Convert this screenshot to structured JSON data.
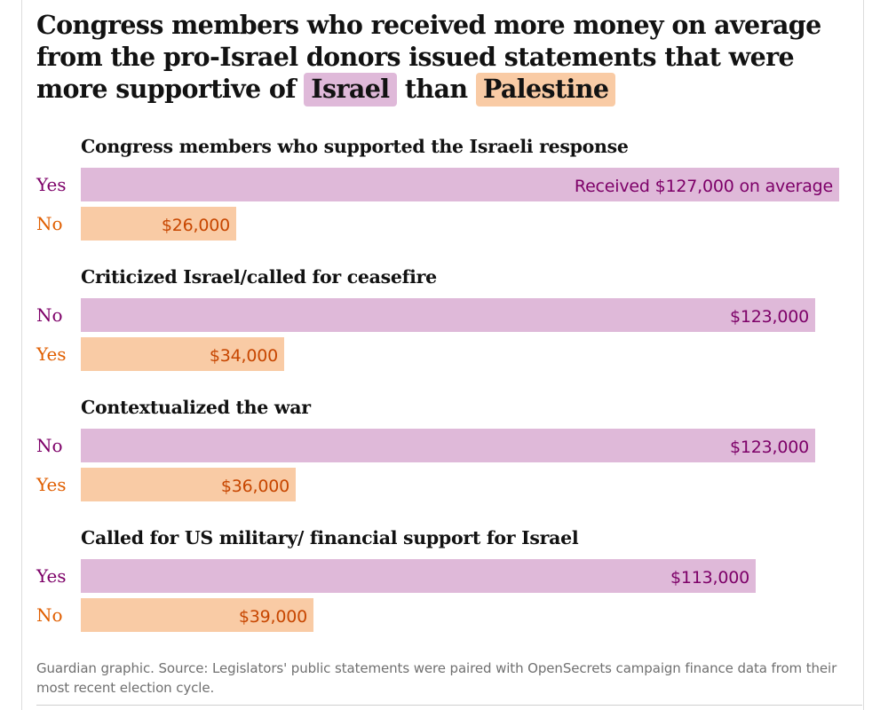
{
  "title": {
    "part1": "Congress members who received more money on average from the pro-Israel donors issued statements that were more supportive of",
    "israel": "Israel",
    "than": "than",
    "palestine": "Palestine"
  },
  "colors": {
    "israel_bar": "#dfb9d9",
    "palestine_bar": "#f9cba5",
    "israel_text": "#7d0068",
    "palestine_text": "#e05e00"
  },
  "chart_data": {
    "type": "bar",
    "orientation": "horizontal",
    "units": "USD",
    "xlim": [
      0,
      127000
    ],
    "grid": false,
    "groups": [
      {
        "title": "Congress members who supported the Israeli response",
        "rows": [
          {
            "label": "Yes",
            "value": 127000,
            "value_label": "Received $127,000 on average",
            "color": "israel"
          },
          {
            "label": "No",
            "value": 26000,
            "value_label": "$26,000",
            "color": "palestine"
          }
        ]
      },
      {
        "title": "Criticized Israel/called for ceasefire",
        "rows": [
          {
            "label": "No",
            "value": 123000,
            "value_label": "$123,000",
            "color": "israel"
          },
          {
            "label": "Yes",
            "value": 34000,
            "value_label": "$34,000",
            "color": "palestine"
          }
        ]
      },
      {
        "title": "Contextualized the war",
        "rows": [
          {
            "label": "No",
            "value": 123000,
            "value_label": "$123,000",
            "color": "israel"
          },
          {
            "label": "Yes",
            "value": 36000,
            "value_label": "$36,000",
            "color": "palestine"
          }
        ]
      },
      {
        "title": "Called for US military/ financial support for Israel",
        "rows": [
          {
            "label": "Yes",
            "value": 113000,
            "value_label": "$113,000",
            "color": "israel"
          },
          {
            "label": "No",
            "value": 39000,
            "value_label": "$39,000",
            "color": "palestine"
          }
        ]
      }
    ]
  },
  "source": "Guardian graphic. Source: Legislators' public statements were paired with OpenSecrets campaign finance data from their most recent election cycle."
}
